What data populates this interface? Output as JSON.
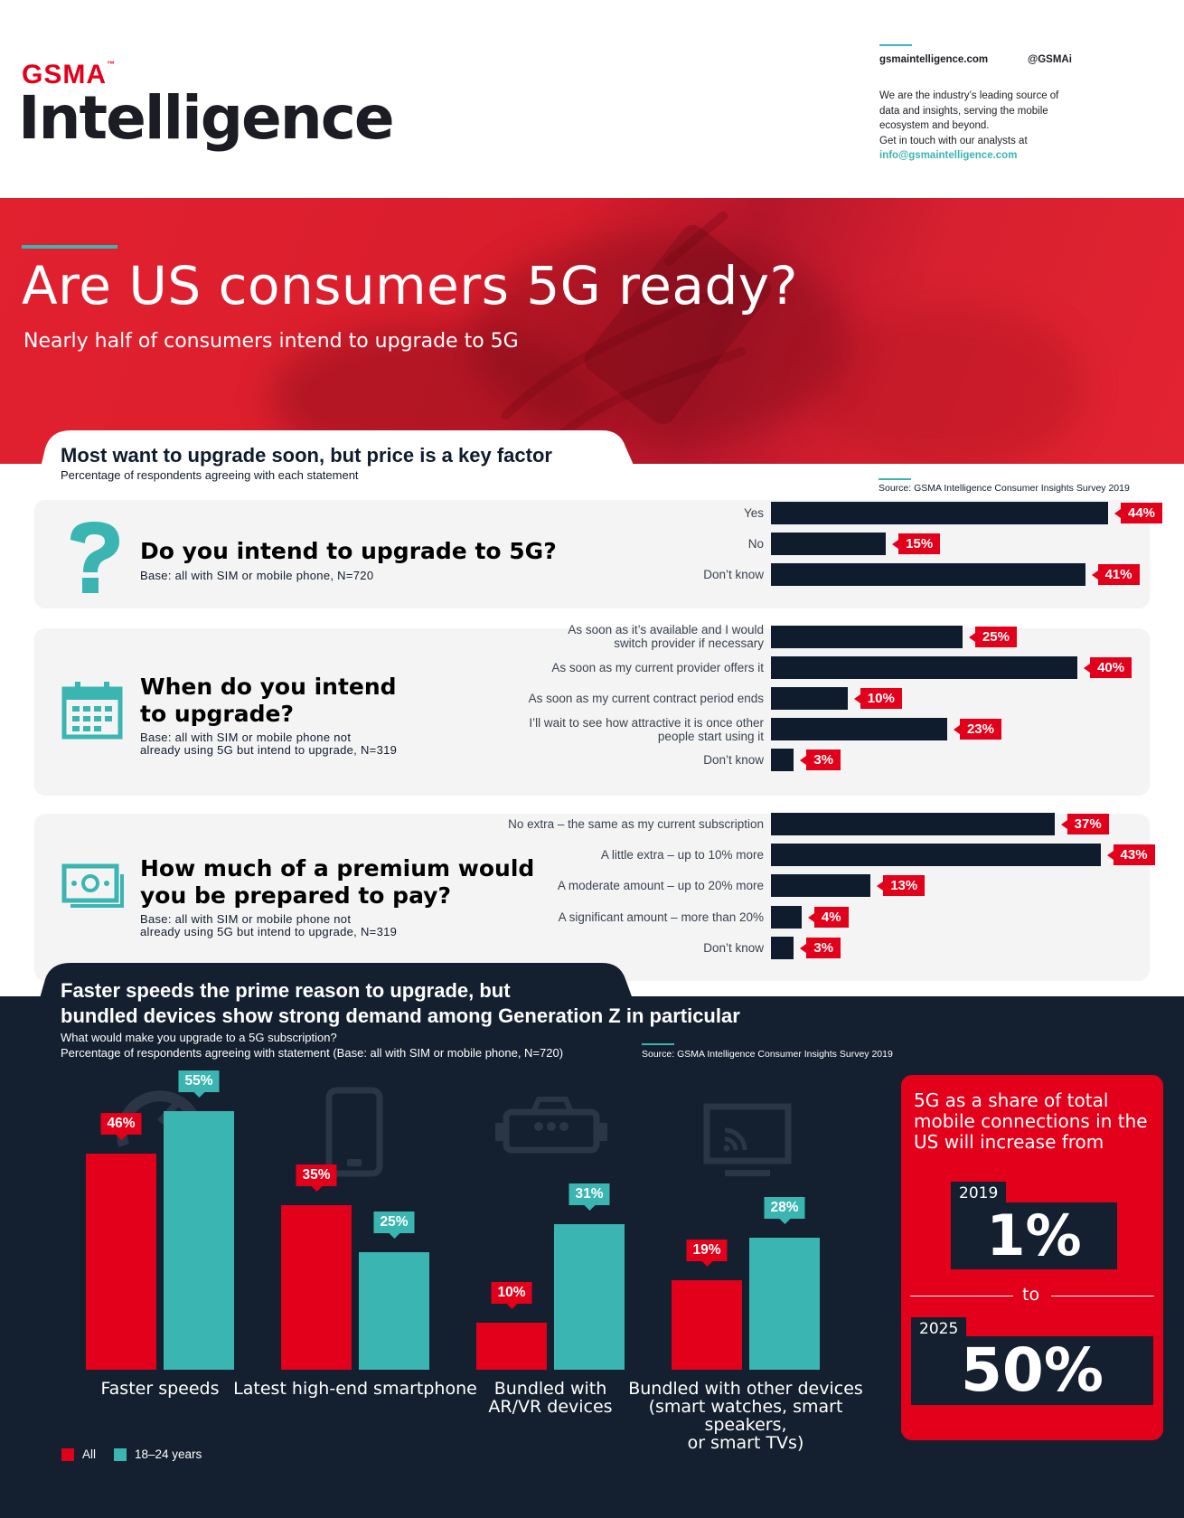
{
  "header": {
    "brand_top": "GSMA",
    "brand_tm": "™",
    "brand_main": "Intelligence",
    "website": "gsmaintelligence.com",
    "twitter": "@GSMAi",
    "about_lines": [
      "We are the industry’s leading source of",
      "data and insights, serving the mobile",
      "ecosystem and beyond.",
      "Get in touch with our analysts at"
    ],
    "email": "info@gsmaintelligence.com"
  },
  "hero": {
    "title": "Are US consumers 5G ready?",
    "subtitle": "Nearly half of consumers intend to upgrade to 5G"
  },
  "section1": {
    "title": "Most want to upgrade soon, but price is a key factor",
    "subtitle": "Percentage of respondents agreeing with each statement",
    "source": "Source: GSMA Intelligence Consumer Insights Survey 2019",
    "questions": [
      {
        "title_lines": [
          "Do you intend to upgrade to 5G?"
        ],
        "base_lines": [
          "Base: all with SIM or mobile phone, N=720"
        ],
        "icon": "question-mark-icon"
      },
      {
        "title_lines": [
          "When do you intend",
          "to upgrade?"
        ],
        "base_lines": [
          "Base: all with SIM or mobile phone not",
          "already using 5G but intend to upgrade, N=319"
        ],
        "icon": "calendar-icon"
      },
      {
        "title_lines": [
          "How much of a premium would",
          "you be prepared to pay?"
        ],
        "base_lines": [
          "Base: all with SIM or mobile phone not",
          "already using 5G but intend to upgrade, N=319"
        ],
        "icon": "money-icon"
      }
    ]
  },
  "section2": {
    "title_lines": [
      "Faster speeds the prime reason to upgrade, but",
      "bundled devices show strong demand among Generation Z in particular"
    ],
    "subtitle_lines": [
      "What would make you upgrade to a 5G subscription?",
      "Percentage of respondents agreeing with statement (Base: all with SIM or mobile phone, N=720)"
    ],
    "source": "Source: GSMA Intelligence Consumer Insights Survey 2019",
    "category_icons": [
      "speedometer-icon",
      "smartphone-icon",
      "vr-headset-icon",
      "smart-tv-icon"
    ]
  },
  "callout": {
    "text": "5G as a share of total mobile connections in the US will increase from",
    "year_from": "2019",
    "value_from": "1%",
    "connector": "to",
    "year_to": "2025",
    "value_to": "50%"
  },
  "colors": {
    "red": "#e2001a",
    "teal": "#3ab5b1",
    "navy": "#0e1c2d"
  },
  "chart_data": [
    {
      "type": "bar",
      "orientation": "horizontal",
      "title": "Do you intend to upgrade to 5G?",
      "categories": [
        "Yes",
        "No",
        "Don’t know"
      ],
      "values": [
        44,
        15,
        41
      ],
      "value_labels": [
        "44%",
        "15%",
        "41%"
      ],
      "xlim": [
        0,
        44
      ]
    },
    {
      "type": "bar",
      "orientation": "horizontal",
      "title": "When do you intend to upgrade?",
      "categories": [
        [
          "As soon as it’s available and I would",
          "switch provider if necessary"
        ],
        [
          "As soon as my current provider offers it"
        ],
        [
          "As soon as my current contract period ends"
        ],
        [
          "I’ll wait to see how attractive it is once other",
          "people start using it"
        ],
        [
          "Don’t know"
        ]
      ],
      "values": [
        25,
        40,
        10,
        23,
        3
      ],
      "value_labels": [
        "25%",
        "40%",
        "10%",
        "23%",
        "3%"
      ],
      "xlim": [
        0,
        44
      ]
    },
    {
      "type": "bar",
      "orientation": "horizontal",
      "title": "How much of a premium would you be prepared to pay?",
      "categories": [
        "No extra – the same as my current subscription",
        "A little extra – up to 10% more",
        "A moderate amount – up to 20% more",
        "A significant amount – more than 20%",
        "Don’t know"
      ],
      "values": [
        37,
        43,
        13,
        4,
        3
      ],
      "value_labels": [
        "37%",
        "43%",
        "13%",
        "4%",
        "3%"
      ],
      "xlim": [
        0,
        44
      ]
    },
    {
      "type": "bar",
      "orientation": "vertical",
      "title": "What would make you upgrade to a 5G subscription?",
      "categories": [
        [
          "Faster speeds"
        ],
        [
          "Latest high-end smartphone"
        ],
        [
          "Bundled with",
          "AR/VR devices"
        ],
        [
          "Bundled with other devices",
          "(smart watches, smart speakers,",
          "or smart TVs)"
        ]
      ],
      "series": [
        {
          "name": "All",
          "values": [
            46,
            35,
            10,
            19
          ],
          "value_labels": [
            "46%",
            "35%",
            "10%",
            "19%"
          ],
          "color": "#e2001a"
        },
        {
          "name": "18–24 years",
          "values": [
            55,
            25,
            31,
            28
          ],
          "value_labels": [
            "55%",
            "25%",
            "31%",
            "28%"
          ],
          "color": "#3ab5b1"
        }
      ],
      "ylim": [
        0,
        55
      ],
      "legend": "bottom-left"
    }
  ]
}
